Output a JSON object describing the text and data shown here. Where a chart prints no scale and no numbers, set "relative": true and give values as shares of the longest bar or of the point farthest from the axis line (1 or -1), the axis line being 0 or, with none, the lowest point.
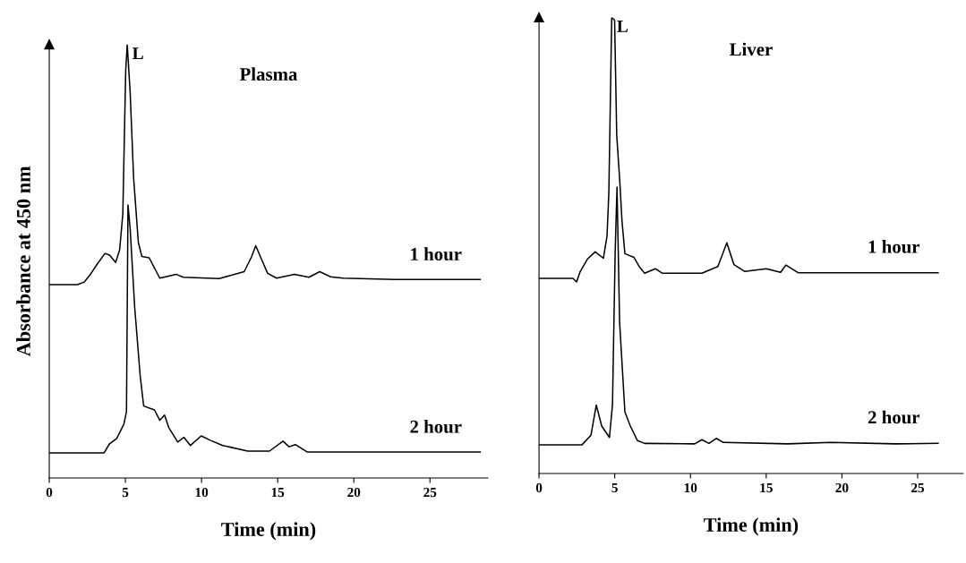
{
  "chart_data": [
    {
      "type": "line",
      "title": "Plasma",
      "xlabel": "Time (min)",
      "ylabel": "Absorbance at 450 nm",
      "relative": true,
      "xlim": [
        0,
        28.8
      ],
      "xticks": [
        0,
        5,
        10,
        15,
        20,
        25
      ],
      "tick_labels": "x",
      "grid": false,
      "legend": false,
      "line_style": "solid",
      "marker": "none",
      "annotations": [
        {
          "text": "L",
          "x": 5.12,
          "y": 1.0
        }
      ],
      "series": [
        {
          "name": "1 hour",
          "color": "#000000",
          "x": [
            0,
            1.84,
            2.3,
            2.67,
            3.14,
            3.66,
            3.96,
            4.36,
            4.62,
            4.83,
            5.02,
            5.12,
            5.31,
            5.54,
            5.85,
            6.08,
            6.56,
            6.9,
            7.26,
            8.33,
            8.8,
            11.16,
            12.8,
            13.28,
            13.56,
            13.87,
            14.34,
            14.93,
            16.1,
            17.05,
            17.76,
            18.47,
            19.29,
            22.7,
            28.3
          ],
          "values": [
            0.446,
            0.446,
            0.452,
            0.468,
            0.493,
            0.518,
            0.514,
            0.497,
            0.526,
            0.609,
            0.94,
            1.0,
            0.891,
            0.692,
            0.543,
            0.511,
            0.508,
            0.485,
            0.461,
            0.47,
            0.463,
            0.46,
            0.476,
            0.51,
            0.536,
            0.51,
            0.472,
            0.461,
            0.47,
            0.463,
            0.476,
            0.464,
            0.461,
            0.458,
            0.458
          ]
        },
        {
          "name": "2 hour",
          "color": "#000000",
          "x": [
            0,
            3.6,
            3.96,
            4.43,
            4.9,
            5.07,
            5.17,
            5.31,
            5.61,
            5.97,
            6.2,
            6.91,
            7.26,
            7.57,
            7.85,
            8.44,
            8.84,
            9.27,
            9.98,
            10.57,
            11.39,
            13.04,
            14.46,
            15.35,
            15.75,
            16.16,
            16.93,
            28.3
          ],
          "values": [
            0.058,
            0.058,
            0.079,
            0.091,
            0.124,
            0.153,
            0.63,
            0.576,
            0.394,
            0.236,
            0.166,
            0.157,
            0.133,
            0.145,
            0.116,
            0.083,
            0.094,
            0.075,
            0.097,
            0.087,
            0.075,
            0.062,
            0.062,
            0.085,
            0.072,
            0.077,
            0.06,
            0.06
          ]
        }
      ]
    },
    {
      "type": "line",
      "title": "Liver",
      "xlabel": "Time (min)",
      "relative": true,
      "xlim": [
        0,
        28.0
      ],
      "xticks": [
        0,
        5,
        10,
        15,
        20,
        25
      ],
      "tick_labels": "x",
      "grid": false,
      "legend": false,
      "line_style": "solid",
      "marker": "none",
      "annotations": [
        {
          "text": "L",
          "x": 4.8,
          "y": 1.0
        }
      ],
      "series": [
        {
          "name": "1 hour",
          "color": "#000000",
          "x": [
            0,
            2.24,
            2.48,
            2.72,
            3.19,
            3.71,
            4.25,
            4.49,
            4.61,
            4.8,
            4.99,
            5.13,
            5.32,
            5.48,
            5.67,
            6.26,
            6.61,
            6.97,
            7.68,
            8.15,
            10.75,
            11.81,
            12.4,
            12.87,
            13.59,
            15.0,
            15.95,
            16.3,
            17.13,
            26.35
          ],
          "values": [
            0.428,
            0.428,
            0.42,
            0.443,
            0.47,
            0.486,
            0.472,
            0.521,
            0.616,
            1.0,
            0.994,
            0.742,
            0.647,
            0.553,
            0.482,
            0.474,
            0.454,
            0.439,
            0.449,
            0.439,
            0.439,
            0.454,
            0.506,
            0.458,
            0.443,
            0.449,
            0.441,
            0.457,
            0.44,
            0.44
          ]
        },
        {
          "name": "2 hour",
          "color": "#000000",
          "x": [
            0,
            2.84,
            3.43,
            3.78,
            4.14,
            4.65,
            4.85,
            5.03,
            5.15,
            5.32,
            5.67,
            6.03,
            6.5,
            6.97,
            10.28,
            10.75,
            11.22,
            11.7,
            12.17,
            16.42,
            19.26,
            23.5,
            26.35
          ],
          "values": [
            0.063,
            0.063,
            0.084,
            0.15,
            0.104,
            0.079,
            0.151,
            0.49,
            0.628,
            0.332,
            0.135,
            0.104,
            0.072,
            0.066,
            0.065,
            0.074,
            0.066,
            0.077,
            0.068,
            0.065,
            0.068,
            0.065,
            0.066
          ]
        }
      ]
    }
  ]
}
